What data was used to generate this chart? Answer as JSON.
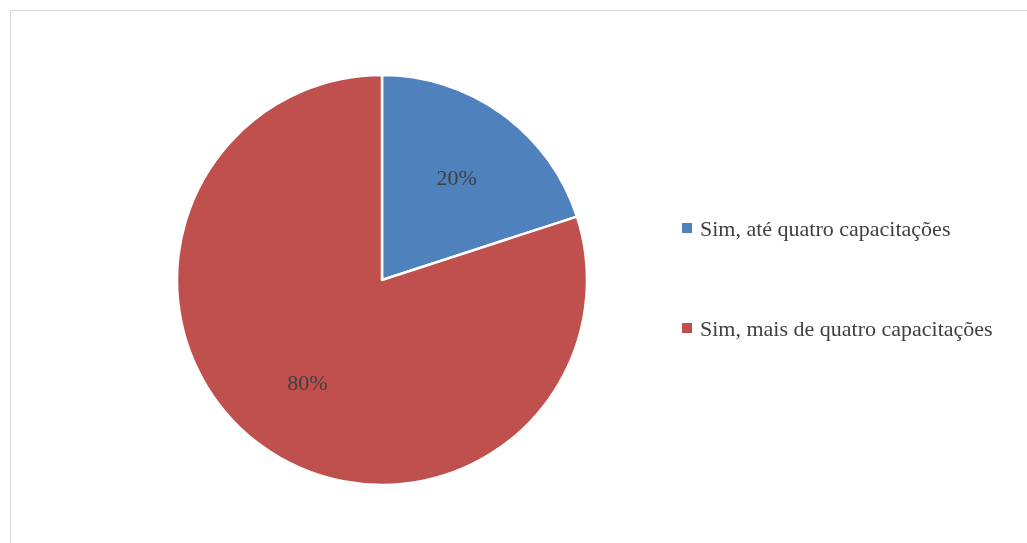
{
  "chart_data": {
    "type": "pie",
    "categories": [
      "Sim, até quatro capacitações",
      "Sim, mais de quatro capacitações"
    ],
    "values": [
      20,
      80
    ],
    "colors": [
      "#4f81bd",
      "#c0504d"
    ],
    "value_labels": [
      "20%",
      "80%"
    ],
    "legend": "right"
  }
}
